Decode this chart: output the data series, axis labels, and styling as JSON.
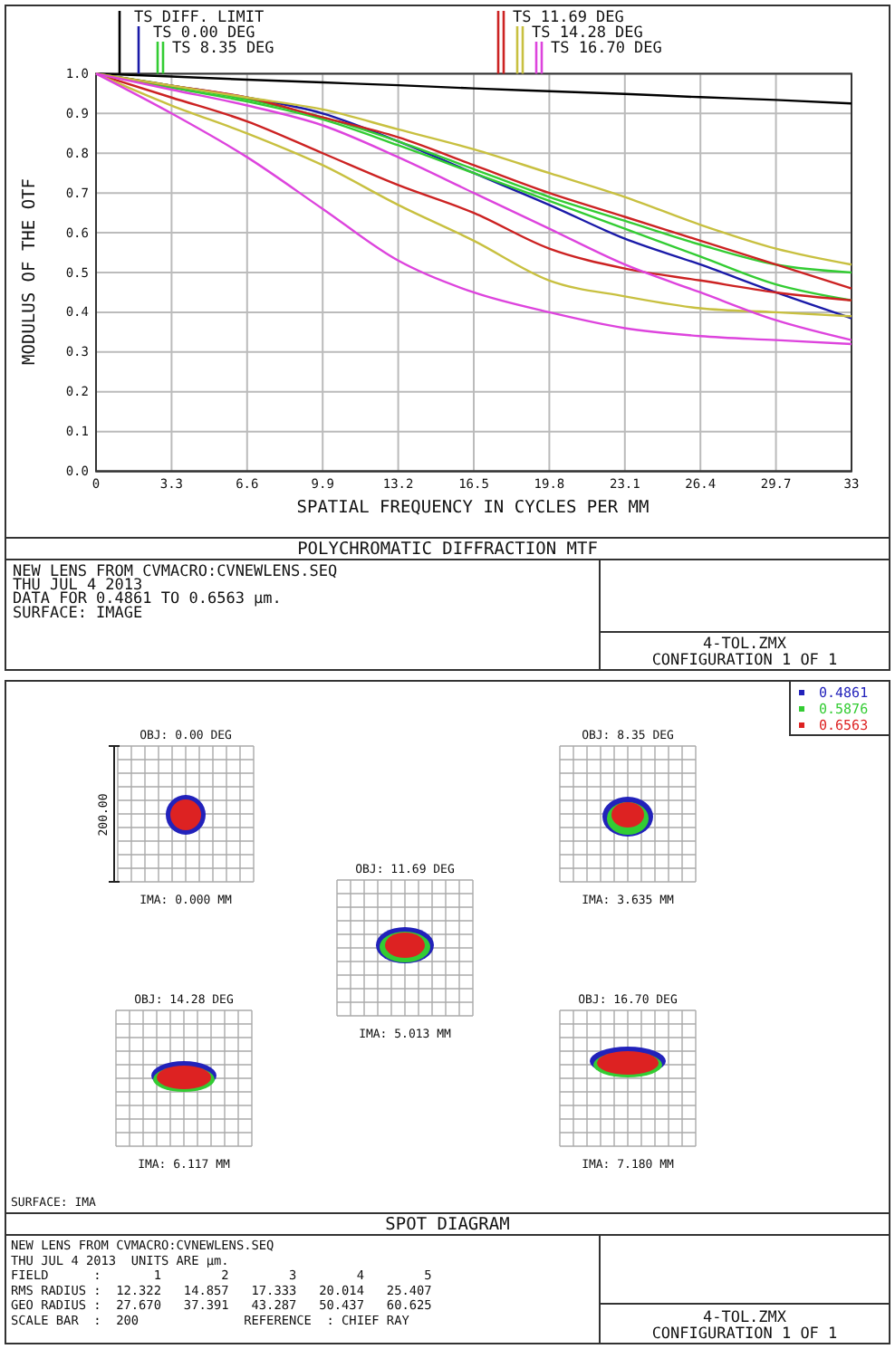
{
  "chart_data": [
    {
      "type": "line",
      "title": "POLYCHROMATIC DIFFRACTION MTF",
      "xlabel": "SPATIAL FREQUENCY IN CYCLES PER MM",
      "ylabel": "MODULUS OF THE OTF",
      "x": [
        0,
        3.3,
        6.6,
        9.9,
        13.2,
        16.5,
        19.8,
        23.1,
        26.4,
        29.7,
        33
      ],
      "series": [
        {
          "name": "TS DIFF. LIMIT",
          "color": "#000000",
          "values": [
            1.0,
            0.993,
            0.985,
            0.978,
            0.971,
            0.963,
            0.956,
            0.949,
            0.941,
            0.934,
            0.925
          ]
        },
        {
          "name": "TS 0.00 DEG",
          "color": "#1a1aa8",
          "values": [
            1.0,
            0.97,
            0.94,
            0.9,
            0.83,
            0.75,
            0.67,
            0.585,
            0.52,
            0.45,
            0.385
          ]
        },
        {
          "name": "TS 8.35 DEG",
          "color": "#33cc33",
          "values": [
            1.0,
            0.97,
            0.935,
            0.89,
            0.83,
            0.76,
            0.69,
            0.63,
            0.57,
            0.52,
            0.5
          ]
        },
        {
          "color": "#33cc33",
          "values": [
            1.0,
            0.965,
            0.93,
            0.885,
            0.82,
            0.75,
            0.68,
            0.61,
            0.54,
            0.47,
            0.43
          ]
        },
        {
          "name": "TS 11.69 DEG",
          "color": "#cc2222",
          "values": [
            1.0,
            0.97,
            0.94,
            0.89,
            0.84,
            0.77,
            0.7,
            0.64,
            0.58,
            0.52,
            0.46
          ]
        },
        {
          "color": "#cc2222",
          "values": [
            1.0,
            0.94,
            0.88,
            0.8,
            0.72,
            0.65,
            0.56,
            0.51,
            0.48,
            0.45,
            0.43
          ]
        },
        {
          "name": "TS 14.28 DEG",
          "color": "#c8c040",
          "values": [
            1.0,
            0.97,
            0.94,
            0.91,
            0.86,
            0.81,
            0.75,
            0.69,
            0.62,
            0.56,
            0.52
          ]
        },
        {
          "color": "#c8c040",
          "values": [
            1.0,
            0.92,
            0.85,
            0.77,
            0.67,
            0.58,
            0.48,
            0.44,
            0.41,
            0.4,
            0.39
          ]
        },
        {
          "name": "TS 16.70 DEG",
          "color": "#dd44dd",
          "values": [
            1.0,
            0.96,
            0.92,
            0.87,
            0.79,
            0.7,
            0.61,
            0.52,
            0.45,
            0.38,
            0.33
          ]
        },
        {
          "color": "#dd44dd",
          "values": [
            1.0,
            0.9,
            0.79,
            0.66,
            0.53,
            0.45,
            0.4,
            0.36,
            0.34,
            0.33,
            0.32
          ]
        }
      ],
      "xlim": [
        0,
        33
      ],
      "xticks": [
        0,
        3.3,
        6.6,
        9.9,
        13.2,
        16.5,
        19.8,
        23.1,
        26.4,
        29.7,
        33
      ],
      "ylim": [
        0,
        1
      ],
      "yticks": [
        {
          "value": 0,
          "label": "0.0"
        },
        0.1,
        0.2,
        0.3,
        0.4,
        0.5,
        0.6,
        0.7,
        0.8,
        0.9,
        {
          "value": 1,
          "label": "1.0"
        }
      ],
      "grid": true,
      "legend": "top",
      "annotations": [
        "NEW LENS FROM CVMACRO:CVNEWLENS.SEQ",
        "THU JUL 4 2013",
        "DATA FOR 0.4861 TO 0.6563 µm.",
        "SURFACE: IMAGE",
        "4-TOL.ZMX",
        "CONFIGURATION 1 OF 1"
      ]
    },
    {
      "type": "other",
      "title": "SPOT DIAGRAM",
      "legend": "top right",
      "series": [
        {
          "name": "0.4861",
          "color": "#2222bb"
        },
        {
          "name": "0.5876",
          "color": "#33cc33"
        },
        {
          "name": "0.6563",
          "color": "#dd2222"
        }
      ],
      "annotations": [
        "OBJ: 0.00 DEG",
        "IMA: 0.000 MM",
        "OBJ: 8.35 DEG",
        "IMA: 3.635 MM",
        "OBJ: 11.69 DEG",
        "IMA: 5.013 MM",
        "OBJ: 14.28 DEG",
        "IMA: 6.117 MM",
        "OBJ: 16.70 DEG",
        "IMA: 7.180 MM",
        "200.00",
        "SURFACE: IMA",
        "NEW LENS FROM CVMACRO:CVNEWLENS.SEQ",
        "THU JUL 4 2013  UNITS ARE µm.",
        "FIELD      :       1        2        3        4        5",
        "RMS RADIUS :  12.322   14.857   17.333   20.014   25.407",
        "GEO RADIUS :  27.670   37.391   43.287   50.437   60.625",
        "SCALE BAR  :  200              REFERENCE  : CHIEF RAY",
        "4-TOL.ZMX",
        "CONFIGURATION 1 OF 1"
      ]
    }
  ]
}
